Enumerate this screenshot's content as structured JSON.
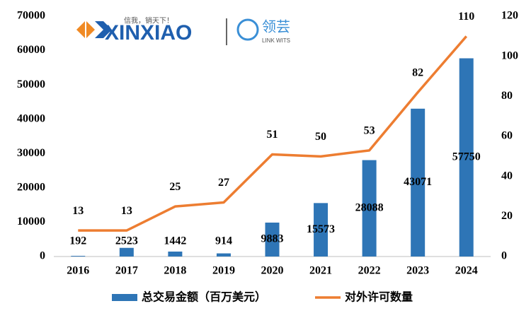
{
  "chart_data": {
    "type": "bar-line",
    "logo": {
      "brand": "XINXIAO",
      "slogan": "信我，销天下！",
      "partner": "领芸",
      "partner_en": "LINK WITS"
    },
    "categories": [
      "2016",
      "2017",
      "2018",
      "2019",
      "2020",
      "2021",
      "2022",
      "2023",
      "2024"
    ],
    "series": [
      {
        "name": "总交易金额（百万美元）",
        "type": "bar",
        "axis": "y",
        "color": "#2e75b6",
        "values": [
          192,
          2523,
          1442,
          914,
          9883,
          15573,
          28088,
          43071,
          57750
        ]
      },
      {
        "name": "对外许可数量",
        "type": "line",
        "axis": "y2",
        "color": "#ed7d31",
        "values": [
          13,
          13,
          25,
          27,
          51,
          50,
          53,
          82,
          110
        ]
      }
    ],
    "ylim": [
      0,
      70000
    ],
    "yticks": [
      0,
      10000,
      20000,
      30000,
      40000,
      50000,
      60000,
      70000
    ],
    "y2lim": [
      0,
      120
    ],
    "y2ticks": [
      0,
      20,
      40,
      60,
      80,
      100,
      120
    ],
    "grid": false,
    "legend": "bottom"
  }
}
